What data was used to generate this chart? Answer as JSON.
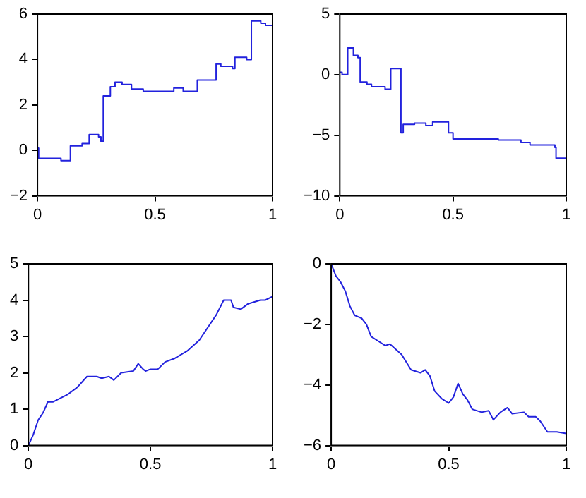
{
  "chart_data": [
    {
      "type": "step",
      "color": "#2222dd",
      "xlim": [
        0,
        1
      ],
      "xticks": [
        0,
        0.5,
        1
      ],
      "ylim": [
        -2,
        6
      ],
      "yticks": [
        -2,
        0,
        2,
        4,
        6
      ],
      "x": [
        0,
        0.005,
        0.08,
        0.1,
        0.14,
        0.19,
        0.2,
        0.22,
        0.26,
        0.27,
        0.28,
        0.31,
        0.33,
        0.36,
        0.4,
        0.45,
        0.55,
        0.58,
        0.62,
        0.68,
        0.76,
        0.78,
        0.83,
        0.84,
        0.89,
        0.91,
        0.95,
        0.97,
        1
      ],
      "values": [
        0.1,
        -0.35,
        -0.35,
        -0.45,
        0.2,
        0.3,
        0.3,
        0.7,
        0.6,
        0.4,
        2.4,
        2.8,
        3.0,
        2.9,
        2.7,
        2.6,
        2.6,
        2.75,
        2.6,
        3.1,
        3.8,
        3.7,
        3.6,
        4.1,
        4.0,
        5.7,
        5.6,
        5.5,
        5.5
      ]
    },
    {
      "type": "step",
      "color": "#2222dd",
      "xlim": [
        0,
        1
      ],
      "xticks": [
        0,
        0.5,
        1
      ],
      "ylim": [
        -10,
        5
      ],
      "yticks": [
        -10,
        -5,
        0,
        5
      ],
      "x": [
        0,
        0.01,
        0.035,
        0.06,
        0.08,
        0.09,
        0.12,
        0.14,
        0.2,
        0.225,
        0.26,
        0.27,
        0.28,
        0.33,
        0.38,
        0.41,
        0.47,
        0.48,
        0.5,
        0.7,
        0.8,
        0.84,
        0.95,
        0.955,
        1
      ],
      "values": [
        0.2,
        0.0,
        2.2,
        1.6,
        1.4,
        -0.6,
        -0.8,
        -1.0,
        -1.2,
        0.5,
        0.5,
        -4.8,
        -4.1,
        -4.0,
        -4.2,
        -3.9,
        -3.9,
        -4.8,
        -5.3,
        -5.4,
        -5.6,
        -5.8,
        -6.0,
        -6.9,
        -6.9
      ]
    },
    {
      "type": "line",
      "color": "#2222dd",
      "xlim": [
        0,
        1
      ],
      "xticks": [
        0,
        0.5,
        1
      ],
      "ylim": [
        0,
        5
      ],
      "yticks": [
        0,
        1,
        2,
        3,
        4,
        5
      ],
      "x": [
        0,
        0.02,
        0.04,
        0.06,
        0.08,
        0.1,
        0.13,
        0.16,
        0.2,
        0.24,
        0.28,
        0.3,
        0.33,
        0.35,
        0.38,
        0.43,
        0.45,
        0.47,
        0.48,
        0.5,
        0.53,
        0.56,
        0.6,
        0.65,
        0.7,
        0.73,
        0.77,
        0.8,
        0.83,
        0.84,
        0.87,
        0.9,
        0.95,
        0.97,
        1
      ],
      "values": [
        0,
        0.3,
        0.7,
        0.9,
        1.2,
        1.2,
        1.3,
        1.4,
        1.6,
        1.9,
        1.9,
        1.85,
        1.9,
        1.8,
        2.0,
        2.05,
        2.25,
        2.1,
        2.05,
        2.1,
        2.1,
        2.3,
        2.4,
        2.6,
        2.9,
        3.2,
        3.6,
        4.0,
        4.0,
        3.8,
        3.75,
        3.9,
        4.0,
        4.0,
        4.1
      ]
    },
    {
      "type": "line",
      "color": "#2222dd",
      "xlim": [
        0,
        1
      ],
      "xticks": [
        0,
        0.5,
        1
      ],
      "ylim": [
        -6,
        0
      ],
      "yticks": [
        -6,
        -4,
        -2,
        0
      ],
      "x": [
        0,
        0.02,
        0.04,
        0.06,
        0.08,
        0.1,
        0.13,
        0.15,
        0.17,
        0.2,
        0.23,
        0.25,
        0.3,
        0.34,
        0.38,
        0.4,
        0.42,
        0.44,
        0.47,
        0.5,
        0.52,
        0.54,
        0.56,
        0.58,
        0.6,
        0.64,
        0.67,
        0.69,
        0.72,
        0.75,
        0.77,
        0.82,
        0.84,
        0.87,
        0.89,
        0.92,
        0.96,
        1
      ],
      "values": [
        0,
        -0.4,
        -0.6,
        -0.9,
        -1.4,
        -1.7,
        -1.8,
        -2.0,
        -2.4,
        -2.55,
        -2.7,
        -2.65,
        -3.0,
        -3.5,
        -3.6,
        -3.5,
        -3.7,
        -4.2,
        -4.45,
        -4.6,
        -4.4,
        -3.95,
        -4.3,
        -4.5,
        -4.8,
        -4.9,
        -4.85,
        -5.15,
        -4.9,
        -4.75,
        -4.95,
        -4.9,
        -5.05,
        -5.05,
        -5.2,
        -5.55,
        -5.55,
        -5.6
      ]
    }
  ]
}
